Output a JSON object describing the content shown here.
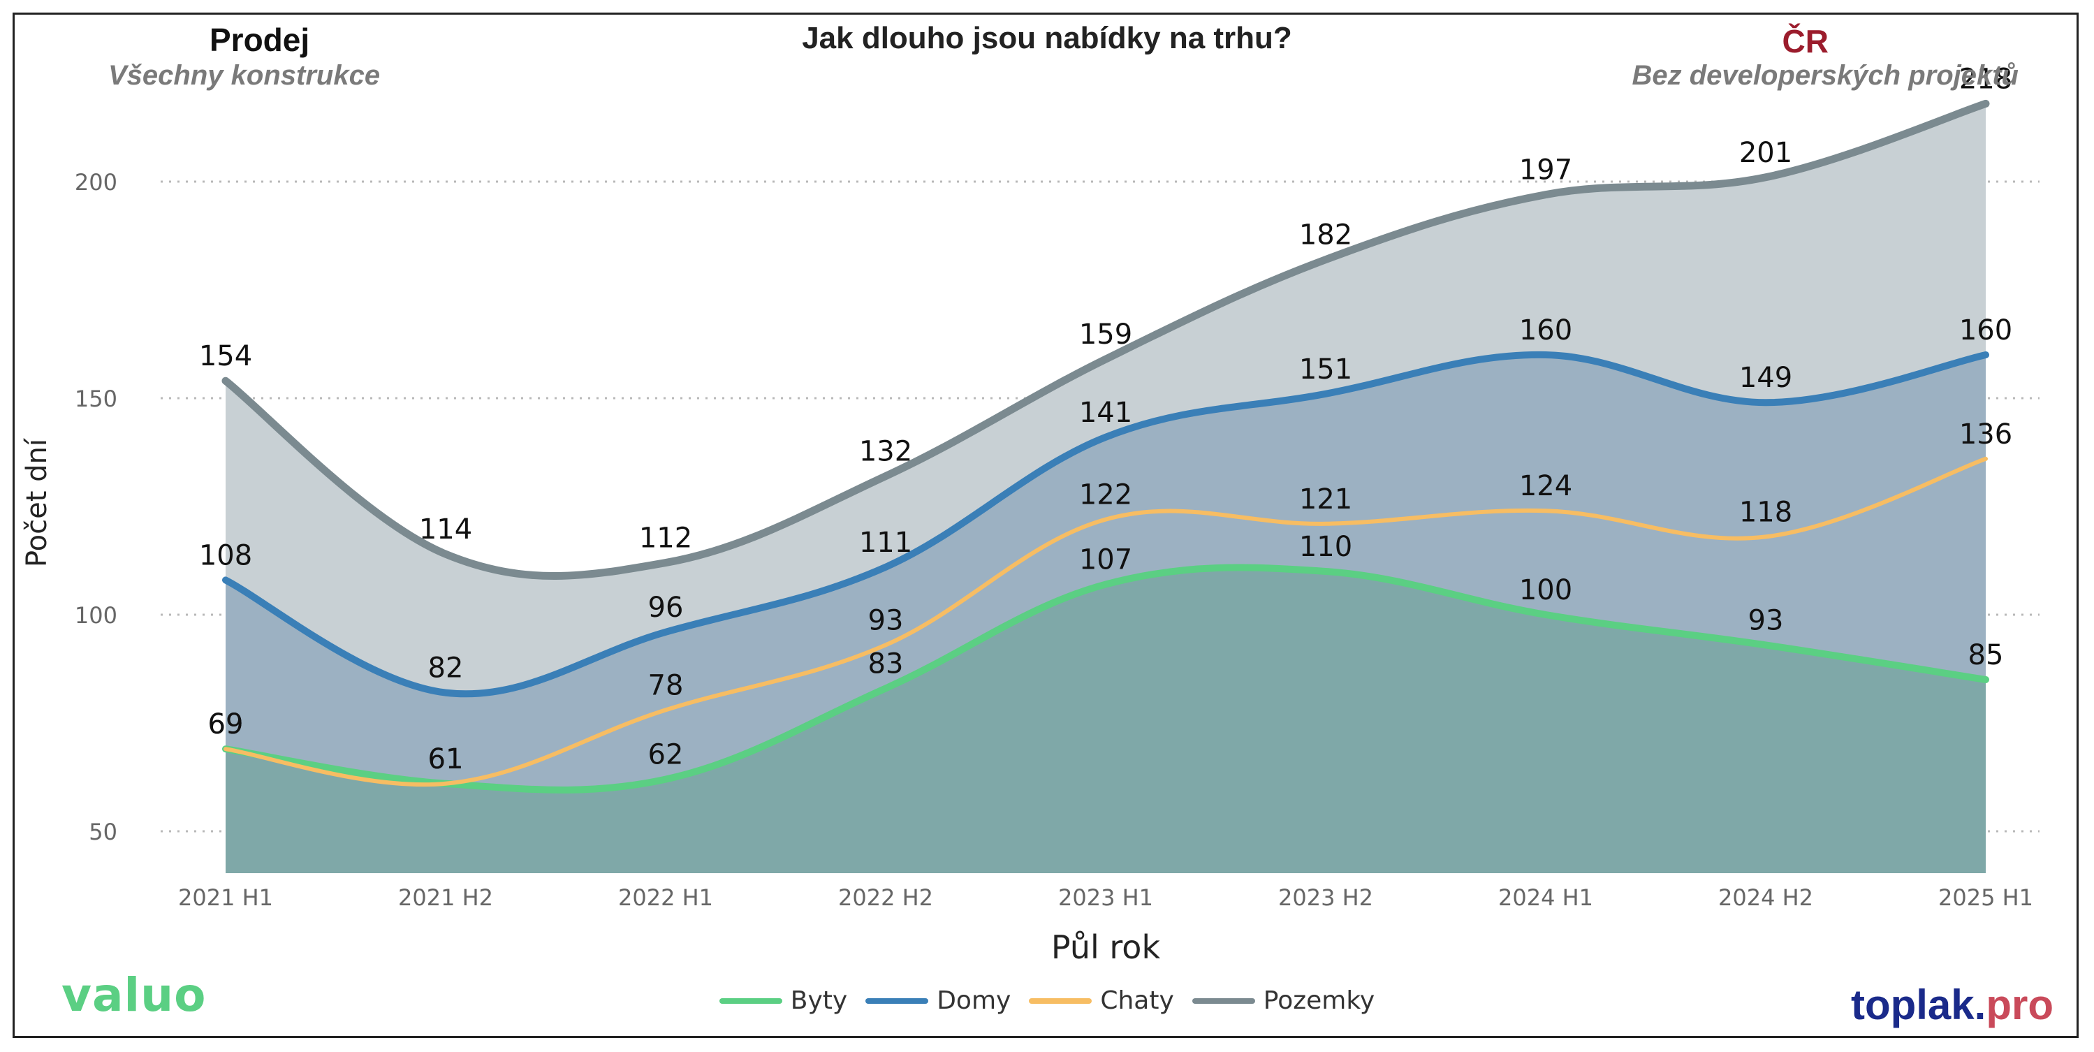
{
  "header": {
    "left_title": "Prodej",
    "left_subtitle": "Všechny konstrukce",
    "title": "Jak dlouho jsou nabídky na trhu?",
    "right_title": "ČR",
    "right_subtitle": "Bez developerských projektů"
  },
  "logos": {
    "left": "valuo",
    "right_part1": "toplak",
    "right_part2": ".",
    "right_part3": "pro"
  },
  "chart_data": {
    "type": "area",
    "title": "Jak dlouho jsou nabídky na trhu?",
    "xlabel": "Půl rok",
    "ylabel": "Počet dní",
    "categories": [
      "2021 H1",
      "2021 H2",
      "2022 H1",
      "2022 H2",
      "2023 H1",
      "2023 H2",
      "2024 H1",
      "2024 H2",
      "2025 H1"
    ],
    "yticks": [
      50,
      100,
      150,
      200
    ],
    "ylim": [
      40,
      220
    ],
    "grid": "horizontal dotted",
    "legend": "bottom-center",
    "series": [
      {
        "name": "Byty",
        "values": [
          69,
          61,
          62,
          83,
          107,
          110,
          100,
          93,
          85
        ],
        "color": "#5bcf83",
        "fill": "#7fa8a8"
      },
      {
        "name": "Domy",
        "values": [
          108,
          82,
          96,
          111,
          141,
          151,
          160,
          149,
          160
        ],
        "color": "#3a7fb7",
        "fill": "#9cb1c2"
      },
      {
        "name": "Chaty",
        "values": [
          69,
          61,
          78,
          93,
          122,
          121,
          124,
          118,
          136
        ],
        "color": "#f7bd63",
        "fill": "none"
      },
      {
        "name": "Pozemky",
        "values": [
          154,
          114,
          112,
          132,
          159,
          182,
          197,
          201,
          218
        ],
        "color": "#7b8a90",
        "fill": "#c8d0d4"
      }
    ]
  }
}
